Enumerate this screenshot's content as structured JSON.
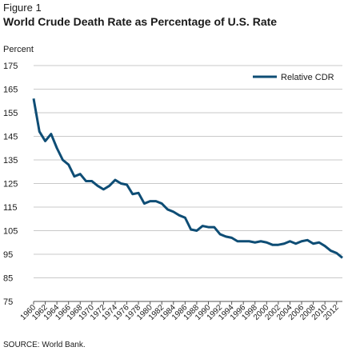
{
  "figure_label": "Figure 1",
  "title": "World Crude Death Rate as Percentage of U.S. Rate",
  "source": "SOURCE: World Bank.",
  "colors": {
    "series": "#0e4d75",
    "grid": "#c9c9c9",
    "axis": "#555555"
  },
  "chart_data": {
    "type": "line",
    "title": "World Crude Death Rate as Percentage of U.S. Rate",
    "ylabel": "Percent",
    "xlabel": "",
    "ylim": [
      75,
      175
    ],
    "yticks": [
      75,
      85,
      95,
      105,
      115,
      125,
      135,
      145,
      155,
      165,
      175
    ],
    "xtick_labels": [
      "1960",
      "1962",
      "1964",
      "1966",
      "1968",
      "1970",
      "1972",
      "1974",
      "1976",
      "1978",
      "1980",
      "1982",
      "1984",
      "1986",
      "1988",
      "1990",
      "1992",
      "1994",
      "1996",
      "1998",
      "2000",
      "2002",
      "2004",
      "2006",
      "2008",
      "2010",
      "2012"
    ],
    "grid": "horizontal",
    "legend_position": "top-right",
    "x": [
      1960,
      1961,
      1962,
      1963,
      1964,
      1965,
      1966,
      1967,
      1968,
      1969,
      1970,
      1971,
      1972,
      1973,
      1974,
      1975,
      1976,
      1977,
      1978,
      1979,
      1980,
      1981,
      1982,
      1983,
      1984,
      1985,
      1986,
      1987,
      1988,
      1989,
      1990,
      1991,
      1992,
      1993,
      1994,
      1995,
      1996,
      1997,
      1998,
      1999,
      2000,
      2001,
      2002,
      2003,
      2004,
      2005,
      2006,
      2007,
      2008,
      2009,
      2010,
      2011,
      2012,
      2013
    ],
    "series": [
      {
        "name": "Relative CDR",
        "values": [
          161,
          147,
          143,
          146,
          140,
          135,
          133,
          128,
          129,
          126,
          126,
          124,
          122.5,
          124,
          126.5,
          125,
          124.5,
          120.5,
          121,
          116.5,
          117.5,
          117.5,
          116.5,
          114,
          113,
          111.5,
          110.5,
          105.5,
          105,
          107,
          106.5,
          106.5,
          103.5,
          102.5,
          102,
          100.5,
          100.5,
          100.5,
          100,
          100.5,
          100,
          99,
          99,
          99.5,
          100.5,
          99.5,
          100.5,
          101,
          99.5,
          100,
          98.5,
          96.5,
          95.5,
          93.5
        ]
      }
    ]
  }
}
